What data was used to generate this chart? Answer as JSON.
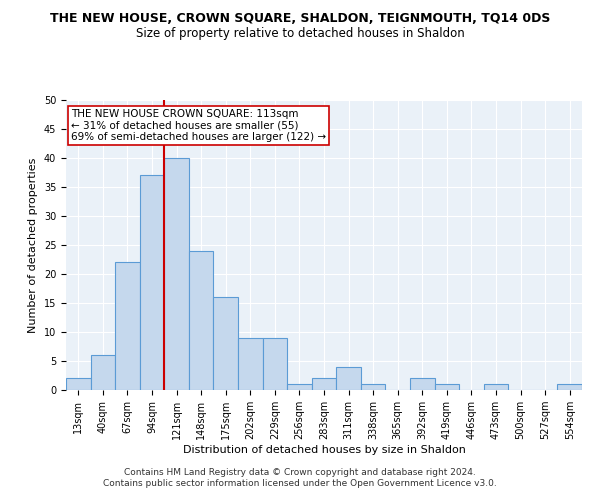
{
  "title": "THE NEW HOUSE, CROWN SQUARE, SHALDON, TEIGNMOUTH, TQ14 0DS",
  "subtitle": "Size of property relative to detached houses in Shaldon",
  "xlabel": "Distribution of detached houses by size in Shaldon",
  "ylabel": "Number of detached properties",
  "footer_line1": "Contains HM Land Registry data © Crown copyright and database right 2024.",
  "footer_line2": "Contains public sector information licensed under the Open Government Licence v3.0.",
  "categories": [
    "13sqm",
    "40sqm",
    "67sqm",
    "94sqm",
    "121sqm",
    "148sqm",
    "175sqm",
    "202sqm",
    "229sqm",
    "256sqm",
    "283sqm",
    "311sqm",
    "338sqm",
    "365sqm",
    "392sqm",
    "419sqm",
    "446sqm",
    "473sqm",
    "500sqm",
    "527sqm",
    "554sqm"
  ],
  "values": [
    2,
    6,
    22,
    37,
    40,
    24,
    16,
    9,
    9,
    1,
    2,
    4,
    1,
    0,
    2,
    1,
    0,
    1,
    0,
    0,
    1
  ],
  "bar_color": "#c5d8ed",
  "bar_edge_color": "#5b9bd5",
  "bar_edge_width": 0.8,
  "vline_position": 3.5,
  "vline_color": "#cc0000",
  "annotation_text": "THE NEW HOUSE CROWN SQUARE: 113sqm\n← 31% of detached houses are smaller (55)\n69% of semi-detached houses are larger (122) →",
  "annotation_box_color": "#ffffff",
  "annotation_box_edge": "#cc0000",
  "ylim": [
    0,
    50
  ],
  "yticks": [
    0,
    5,
    10,
    15,
    20,
    25,
    30,
    35,
    40,
    45,
    50
  ],
  "background_color": "#eaf1f8",
  "grid_color": "#ffffff",
  "title_fontsize": 9,
  "subtitle_fontsize": 8.5,
  "axis_label_fontsize": 8,
  "tick_fontsize": 7,
  "footer_fontsize": 6.5,
  "annotation_fontsize": 7.5
}
